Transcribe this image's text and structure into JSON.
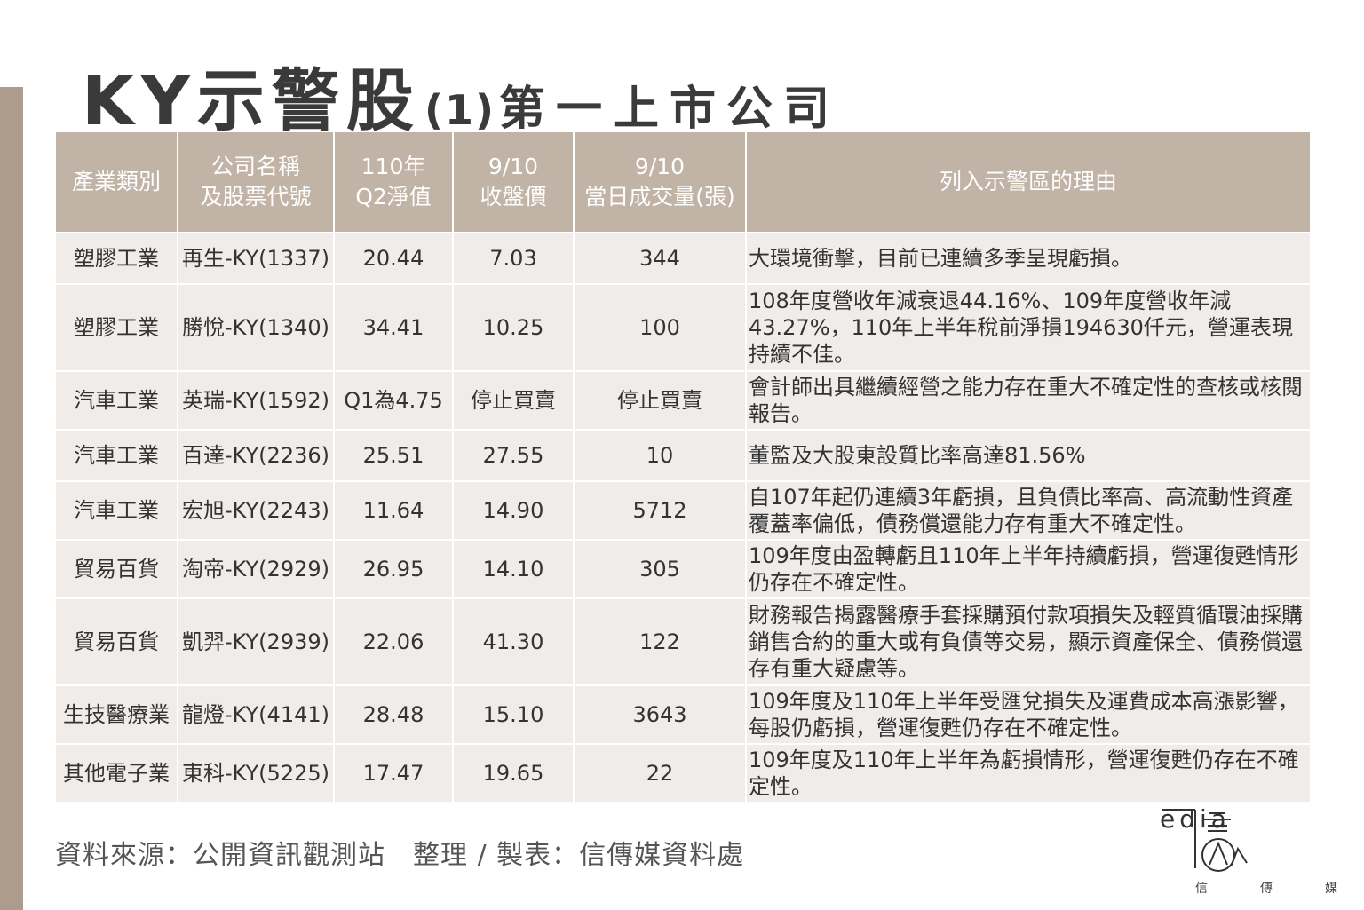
{
  "title": {
    "main": "KY示警股",
    "paren": "(1)",
    "sub": "第一上市公司"
  },
  "table": {
    "headers": [
      "產業類別",
      "公司名稱\n及股票代號",
      "110年\nQ2淨值",
      "9/10\n收盤價",
      "9/10\n當日成交量(張)",
      "列入示警區的理由"
    ],
    "rows": [
      {
        "industry": "塑膠工業",
        "company": "再生-KY(1337)",
        "nav": "20.44",
        "close": "7.03",
        "volume": "344",
        "reason": "大環境衝擊，目前已連續多季呈現虧損。"
      },
      {
        "industry": "塑膠工業",
        "company": "勝悅-KY(1340)",
        "nav": "34.41",
        "close": "10.25",
        "volume": "100",
        "reason": "108年度營收年減衰退44.16%、109年度營收年減43.27%，110年上半年稅前淨損194630仟元，營運表現持續不佳。"
      },
      {
        "industry": "汽車工業",
        "company": "英瑞-KY(1592)",
        "nav": "Q1為4.75",
        "close": "停止買賣",
        "volume": "停止買賣",
        "reason": "會計師出具繼續經營之能力存在重大不確定性的查核或核閱報告。"
      },
      {
        "industry": "汽車工業",
        "company": "百達-KY(2236)",
        "nav": "25.51",
        "close": "27.55",
        "volume": "10",
        "reason": "董監及大股東設質比率高達81.56%"
      },
      {
        "industry": "汽車工業",
        "company": "宏旭-KY(2243)",
        "nav": "11.64",
        "close": "14.90",
        "volume": "5712",
        "reason": "自107年起仍連續3年虧損，且負債比率高、高流動性資產覆蓋率偏低，債務償還能力存有重大不確定性。"
      },
      {
        "industry": "貿易百貨",
        "company": "淘帝-KY(2929)",
        "nav": "26.95",
        "close": "14.10",
        "volume": "305",
        "reason": "109年度由盈轉虧且110年上半年持續虧損，營運復甦情形仍存在不確定性。"
      },
      {
        "industry": "貿易百貨",
        "company": "凱羿-KY(2939)",
        "nav": "22.06",
        "close": "41.30",
        "volume": "122",
        "reason": "財務報告揭露醫療手套採購預付款項損失及輕質循環油採購銷售合約的重大或有負債等交易，顯示資產保全、債務償還存有重大疑慮等。"
      },
      {
        "industry": "生技醫療業",
        "company": "龍燈-KY(4141)",
        "nav": "28.48",
        "close": "15.10",
        "volume": "3643",
        "reason": "109年度及110年上半年受匯兌損失及運費成本高漲影響，每股仍虧損，營運復甦仍存在不確定性。"
      },
      {
        "industry": "其他電子業",
        "company": "東科-KY(5225)",
        "nav": "17.47",
        "close": "19.65",
        "volume": "22",
        "reason": "109年度及110年上半年為虧損情形，營運復甦仍存在不確定性。"
      }
    ]
  },
  "footer": {
    "source": "資料來源：公開資訊觀測站　整理 / 製表：信傳媒資料處"
  },
  "logo": {
    "word": "edia",
    "subtitle": [
      "信",
      "傳",
      "媒"
    ]
  },
  "colors": {
    "header_bg": "#c1b3a6",
    "row_bg": "#efecea",
    "side_bar": "#ad9c8b",
    "title_text": "#3a3a3a"
  }
}
